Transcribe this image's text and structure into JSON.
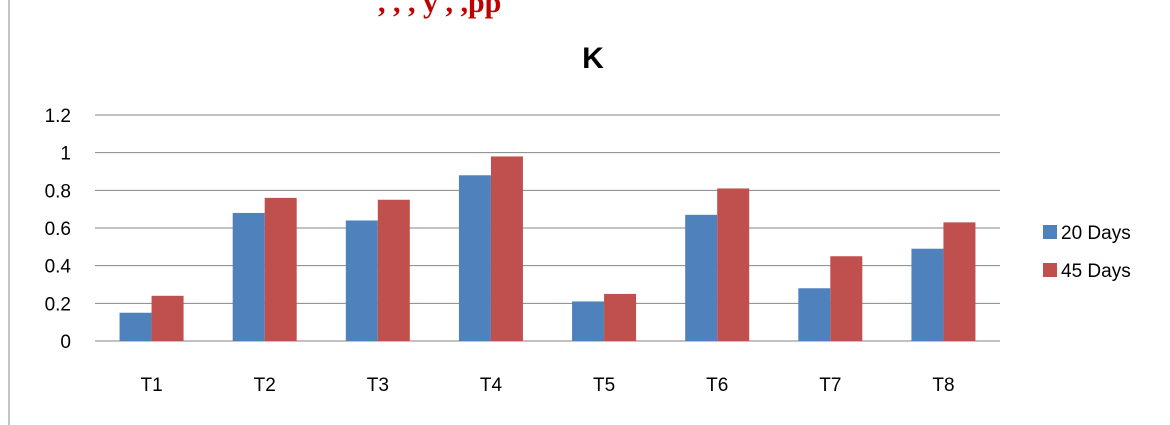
{
  "header_fragment": ", , , y , ,pp",
  "chart_data": {
    "type": "bar",
    "title": "K",
    "categories": [
      "T1",
      "T2",
      "T3",
      "T4",
      "T5",
      "T6",
      "T7",
      "T8"
    ],
    "series": [
      {
        "name": "20 Days",
        "color": "#4f81bd",
        "values": [
          0.15,
          0.68,
          0.64,
          0.88,
          0.21,
          0.67,
          0.28,
          0.49
        ]
      },
      {
        "name": "45 Days",
        "color": "#c0504d",
        "values": [
          0.24,
          0.76,
          0.75,
          0.98,
          0.25,
          0.81,
          0.45,
          0.63
        ]
      }
    ],
    "ylim": [
      0,
      1.2
    ],
    "yticks": [
      "0",
      "0.2",
      "0.4",
      "0.6",
      "0.8",
      "1",
      "1.2"
    ],
    "xlabel": "",
    "ylabel": "",
    "grid": true,
    "legend_position": "right"
  }
}
